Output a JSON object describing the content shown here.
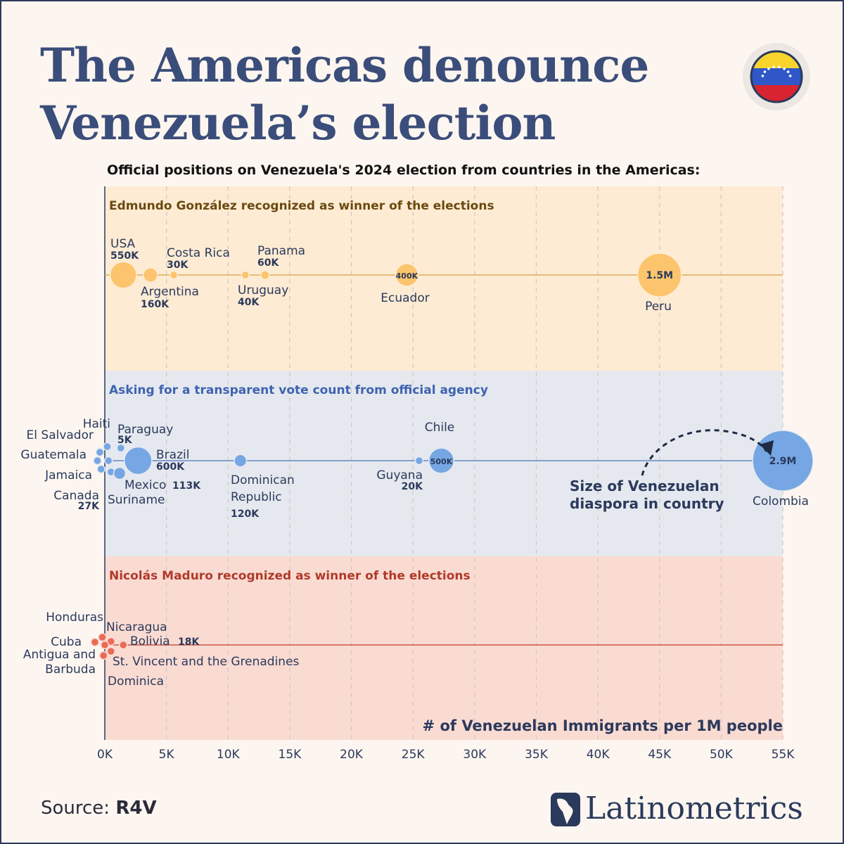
{
  "header": {
    "title_line1": "The Americas denounce",
    "title_line2": "Venezuela’s election",
    "subtitle": "Official positions on Venezuela's 2024 election from countries in the Americas:"
  },
  "footer": {
    "source_label": "Source:",
    "source_value": "R4V",
    "brand": "Latinometrics"
  },
  "colors": {
    "band_gonzalez": "#fdebd3",
    "band_transparent": "#e5e9ef",
    "band_maduro": "#fadbd2",
    "dot_gonzalez": "#fcc46c",
    "dot_transparent": "#76a6e3",
    "dot_maduro": "#ec6a58",
    "line_gonzalez": "#d6a040",
    "line_transparent": "#4a73b8",
    "line_maduro": "#c0392b",
    "title_gonzalez": "#6b4a10",
    "title_transparent": "#3e63b0",
    "title_maduro": "#b03a2a",
    "text": "#2b3a5c",
    "flag_yellow": "#f9d42d",
    "flag_blue": "#2f57c8",
    "flag_red": "#d72430"
  },
  "chart_data": {
    "type": "bubble",
    "xlabel": "# of Venezuelan Immigrants per 1M people",
    "xlim": [
      0,
      55000
    ],
    "xticks": [
      0,
      5000,
      10000,
      15000,
      20000,
      25000,
      30000,
      35000,
      40000,
      45000,
      50000,
      55000
    ],
    "xtick_labels": [
      "0K",
      "5K",
      "10K",
      "15K",
      "20K",
      "25K",
      "30K",
      "35K",
      "40K",
      "45K",
      "50K",
      "55K"
    ],
    "size_annotation": "Size of Venezuelan\ndiaspora in country",
    "groups": [
      {
        "title": "Edmundo González recognized as winner of the elections",
        "countries": [
          {
            "name": "USA",
            "x": 1500,
            "diaspora": 550000,
            "diaspora_label": "550K"
          },
          {
            "name": "Argentina",
            "x": 3700,
            "diaspora": 160000,
            "diaspora_label": "160K"
          },
          {
            "name": "Costa Rica",
            "x": 5600,
            "diaspora": 30000,
            "diaspora_label": "30K"
          },
          {
            "name": "Uruguay",
            "x": 11400,
            "diaspora": 40000,
            "diaspora_label": "40K"
          },
          {
            "name": "Panama",
            "x": 13000,
            "diaspora": 60000,
            "diaspora_label": "60K"
          },
          {
            "name": "Ecuador",
            "x": 24500,
            "diaspora": 400000,
            "diaspora_label": "400K"
          },
          {
            "name": "Peru",
            "x": 45000,
            "diaspora": 1500000,
            "diaspora_label": "1.5M"
          }
        ]
      },
      {
        "title": "Asking for a transparent vote count from official agency",
        "countries": [
          {
            "name": "Haiti",
            "x": 200,
            "diaspora": 2000,
            "diaspora_label": ""
          },
          {
            "name": "El Salvador",
            "x": -400,
            "diaspora": 2000,
            "diaspora_label": ""
          },
          {
            "name": "Guatemala",
            "x": -600,
            "diaspora": 2000,
            "diaspora_label": ""
          },
          {
            "name": "Jamaica",
            "x": -300,
            "diaspora": 2000,
            "diaspora_label": ""
          },
          {
            "name": "Canada",
            "x": 300,
            "diaspora": 27000,
            "diaspora_label": "27K"
          },
          {
            "name": "Paraguay",
            "x": 1300,
            "diaspora": 5000,
            "diaspora_label": "5K"
          },
          {
            "name": "Suriname",
            "x": 500,
            "diaspora": 3000,
            "diaspora_label": ""
          },
          {
            "name": "Mexico",
            "x": 1200,
            "diaspora": 113000,
            "diaspora_label": "113K"
          },
          {
            "name": "Brazil",
            "x": 2700,
            "diaspora": 600000,
            "diaspora_label": "600K"
          },
          {
            "name": "Dominican Republic",
            "x": 11000,
            "diaspora": 120000,
            "diaspora_label": "120K"
          },
          {
            "name": "Guyana",
            "x": 25500,
            "diaspora": 20000,
            "diaspora_label": "20K"
          },
          {
            "name": "Chile",
            "x": 27300,
            "diaspora": 500000,
            "diaspora_label": "500K"
          },
          {
            "name": "Colombia",
            "x": 55000,
            "diaspora": 2900000,
            "diaspora_label": "2.9M"
          }
        ]
      },
      {
        "title": "Nicolás Maduro recognized as winner of the elections",
        "countries": [
          {
            "name": "Honduras",
            "x": -200,
            "diaspora": 2000,
            "diaspora_label": ""
          },
          {
            "name": "Cuba",
            "x": -800,
            "diaspora": 2000,
            "diaspora_label": ""
          },
          {
            "name": "Antigua and Barbuda",
            "x": -100,
            "diaspora": 2000,
            "diaspora_label": ""
          },
          {
            "name": "Nicaragua",
            "x": 500,
            "diaspora": 2000,
            "diaspora_label": ""
          },
          {
            "name": "St. Vincent and the Grenadines",
            "x": 500,
            "diaspora": 2000,
            "diaspora_label": ""
          },
          {
            "name": "Dominica",
            "x": 0,
            "diaspora": 2000,
            "diaspora_label": ""
          },
          {
            "name": "Bolivia",
            "x": 1500,
            "diaspora": 18000,
            "diaspora_label": "18K"
          }
        ]
      }
    ]
  }
}
